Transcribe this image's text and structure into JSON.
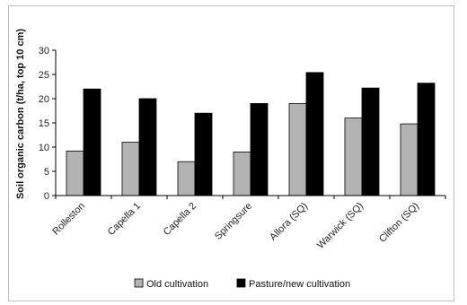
{
  "chart_data": {
    "type": "bar",
    "title": "",
    "xlabel": "",
    "ylabel": "Soil organic carbon (t/ha, top 10 cm)",
    "ylim": [
      0,
      30
    ],
    "yticks": [
      0,
      5,
      10,
      15,
      20,
      25,
      30
    ],
    "categories": [
      "Rolleston",
      "Capella 1",
      "Capella 2",
      "Springsure",
      "Allora (SQ)",
      "Warwick (SQ)",
      "Clifton (SQ)"
    ],
    "series": [
      {
        "name": "Old cultivation",
        "color": "#b3b3b3",
        "values": [
          9.2,
          11,
          7,
          9,
          19,
          16,
          14.8
        ]
      },
      {
        "name": "Pasture/new cultivation",
        "color": "#000000",
        "values": [
          22,
          20,
          17,
          19,
          25.4,
          22.2,
          23.2
        ]
      }
    ],
    "grid": false,
    "legend": "bottom"
  }
}
